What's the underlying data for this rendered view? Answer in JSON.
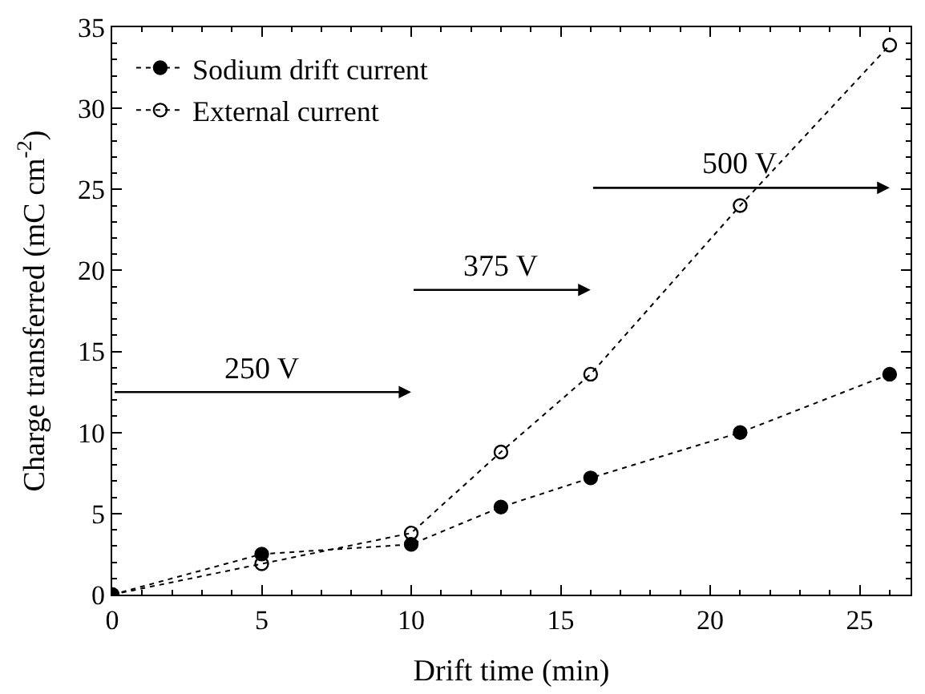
{
  "chart_data": {
    "type": "line",
    "xlabel": "Drift time (min)",
    "ylabel": "Charge transferred (mC cm$^{-2}$)",
    "xlim": [
      0,
      26.7
    ],
    "xticks": [
      0,
      5,
      10,
      15,
      20,
      25
    ],
    "ylim": [
      0,
      35
    ],
    "yticks": [
      0,
      5,
      10,
      15,
      20,
      25,
      30,
      35
    ],
    "legend": "top left",
    "line_style": "dotted",
    "series": [
      {
        "name": "Sodium drift current",
        "color": "#000000",
        "marker": "circle",
        "x": [
          0,
          5,
          10,
          13,
          16,
          21,
          26
        ],
        "values": [
          0,
          2.5,
          3.1,
          5.4,
          7.2,
          10,
          13.6
        ]
      },
      {
        "name": "External current",
        "color": "#000000",
        "marker": "circle-open",
        "x": [
          0,
          5,
          10,
          13,
          16,
          21,
          26
        ],
        "values": [
          0,
          1.9,
          3.8,
          8.8,
          13.6,
          24,
          33.9
        ]
      }
    ],
    "annotations": [
      "250 V",
      "375 V",
      "500 V"
    ]
  }
}
